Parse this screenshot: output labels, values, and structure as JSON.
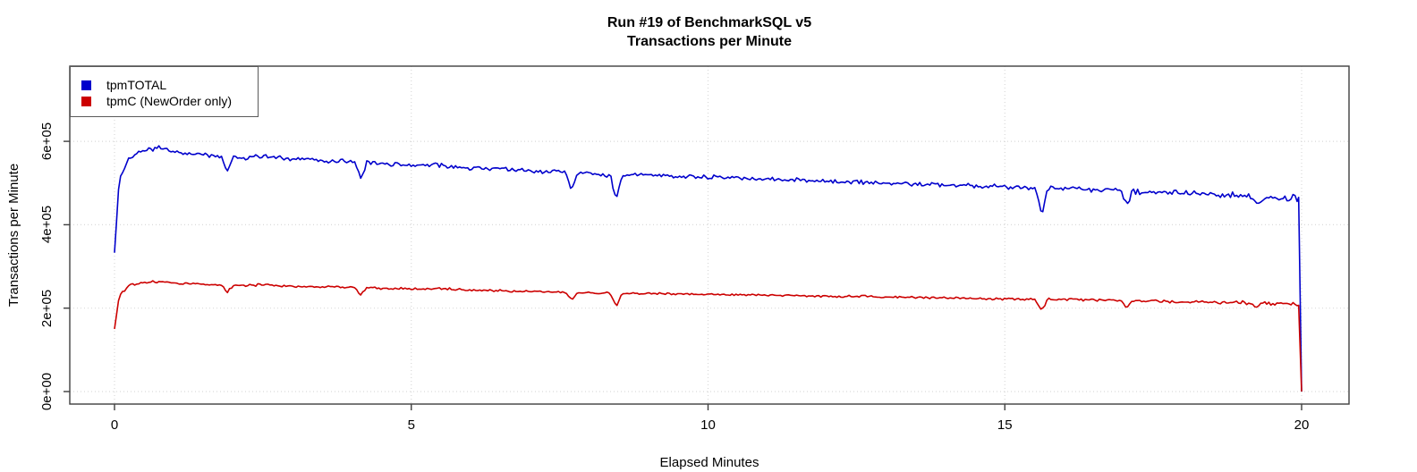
{
  "chart_data": {
    "type": "line",
    "title": "Run #19 of BenchmarkSQL v5",
    "subtitle": "Transactions per Minute",
    "xlabel": "Elapsed Minutes",
    "ylabel": "Transactions per Minute",
    "xlim": [
      0,
      20
    ],
    "ylim": [
      0,
      750000
    ],
    "grid": true,
    "x_tick_values": [
      0,
      5,
      10,
      15,
      20
    ],
    "x_tick_labels": [
      "0",
      "5",
      "10",
      "15",
      "20"
    ],
    "y_tick_values": [
      0,
      200000,
      400000,
      600000
    ],
    "y_tick_labels": [
      "0e+00",
      "2e+05",
      "4e+05",
      "6e+05"
    ],
    "legend": {
      "position": "topleft",
      "entries": [
        {
          "label": "tpmTOTAL",
          "color": "#0000cc"
        },
        {
          "label": "tpmC (NewOrder only)",
          "color": "#cc0000"
        }
      ]
    },
    "colors": {
      "background": "#ffffff",
      "grid": "#d9d9d9",
      "axis": "#3f3f3f",
      "text": "#000000",
      "tpm_total": "#0000cc",
      "tpmc": "#cc0000"
    },
    "anchor_minutes": [
      0,
      0.08,
      0.25,
      0.5,
      0.75,
      1,
      1.5,
      2,
      2.5,
      3,
      3.5,
      4,
      4.5,
      5,
      5.5,
      6,
      6.5,
      7,
      7.5,
      8,
      8.5,
      9,
      9.5,
      10,
      10.5,
      11,
      11.5,
      12,
      12.5,
      13,
      13.5,
      14,
      14.5,
      15,
      15.5,
      16,
      16.5,
      17,
      17.5,
      18,
      18.5,
      19,
      19.5,
      19.95
    ],
    "series": [
      {
        "name": "tpmTOTAL",
        "color": "#0000cc",
        "anchors": [
          333000,
          510000,
          562000,
          580000,
          584000,
          574000,
          568000,
          560000,
          564000,
          557000,
          554000,
          551000,
          547000,
          541000,
          543000,
          536000,
          533000,
          530000,
          526000,
          522000,
          518000,
          521000,
          516000,
          514000,
          512000,
          510000,
          507000,
          505000,
          503000,
          500000,
          498000,
          495000,
          493000,
          491000,
          488000,
          489000,
          485000,
          481000,
          478000,
          476000,
          472000,
          470000,
          466000,
          462000
        ]
      },
      {
        "name": "tpmC (NewOrder only)",
        "color": "#cc0000",
        "anchors": [
          150000,
          231000,
          254000,
          262000,
          264000,
          260000,
          257000,
          254000,
          256000,
          252000,
          251000,
          250000,
          248000,
          246000,
          247000,
          243000,
          242000,
          240000,
          238000,
          237000,
          235000,
          236000,
          234000,
          233000,
          232000,
          231000,
          230000,
          229000,
          228000,
          227000,
          226000,
          224000,
          223000,
          222000,
          221000,
          221000,
          220000,
          218000,
          216000,
          215000,
          214000,
          213000,
          211000,
          209000
        ]
      }
    ],
    "dips": [
      {
        "x": 1.9,
        "tpmTOTAL": 528000,
        "tpmC": 239000
      },
      {
        "x": 4.15,
        "tpmTOTAL": 508000,
        "tpmC": 231000
      },
      {
        "x": 7.7,
        "tpmTOTAL": 481000,
        "tpmC": 219000
      },
      {
        "x": 8.45,
        "tpmTOTAL": 455000,
        "tpmC": 204000
      },
      {
        "x": 15.62,
        "tpmTOTAL": 426000,
        "tpmC": 193000
      },
      {
        "x": 17.05,
        "tpmTOTAL": 446000,
        "tpmC": 202000
      },
      {
        "x": 19.25,
        "tpmTOTAL": 449000,
        "tpmC": 204000
      }
    ],
    "end_drop_x": 20,
    "end_drop_value": 0,
    "noise": {
      "seed": 19,
      "tpmTOTAL": 6500,
      "tpmC": 3200
    }
  }
}
